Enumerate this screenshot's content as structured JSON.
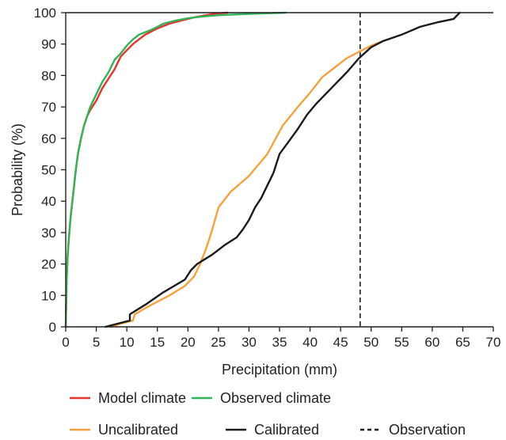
{
  "chart_data": {
    "type": "line",
    "title": "",
    "xlabel": "Precipitation (mm)",
    "ylabel": "Probability (%)",
    "xlim": [
      0,
      70
    ],
    "ylim": [
      0,
      100
    ],
    "xticks": [
      "0",
      "5",
      "10",
      "15",
      "20",
      "25",
      "30",
      "35",
      "40",
      "45",
      "50",
      "55",
      "60",
      "65",
      "70"
    ],
    "yticks": [
      "0",
      "10",
      "20",
      "30",
      "40",
      "50",
      "60",
      "70",
      "80",
      "90",
      "100"
    ],
    "grid": false,
    "legend_position": "bottom",
    "series": [
      {
        "name": "Model climate",
        "color": "#e8322e",
        "style": "solid",
        "x": [
          0,
          0.15,
          0.3,
          0.5,
          0.8,
          1.2,
          1.6,
          2.0,
          2.5,
          3.0,
          3.5,
          4.0,
          5.0,
          6.0,
          7.0,
          8.0,
          9.0,
          10.0,
          11.0,
          12.0,
          13.0,
          15.0,
          17.0,
          19.0,
          21.0,
          23.0,
          24.5,
          26.5
        ],
        "y": [
          0,
          15,
          22,
          28,
          35,
          42,
          49,
          55,
          60,
          64,
          67,
          69,
          72,
          76,
          79,
          82,
          86,
          88,
          90,
          91.5,
          93,
          95,
          96.5,
          97.5,
          98.5,
          99.2,
          99.7,
          100
        ]
      },
      {
        "name": "Observed climate",
        "color": "#2fb457",
        "style": "solid",
        "x": [
          0,
          0.15,
          0.3,
          0.5,
          0.8,
          1.2,
          1.6,
          2.0,
          2.5,
          3.0,
          3.5,
          4.0,
          5.0,
          6.0,
          7.0,
          8.0,
          9.0,
          10.0,
          11.0,
          12.0,
          14.0,
          16.0,
          18.0,
          20.0,
          22.0,
          25.0,
          30.0,
          36.0
        ],
        "y": [
          0,
          15,
          22,
          28,
          35,
          42,
          49,
          55,
          60,
          64,
          67,
          70,
          74,
          78,
          81,
          85,
          87,
          89.5,
          91.5,
          93,
          94.5,
          96.5,
          97.5,
          98.2,
          98.7,
          99.2,
          99.6,
          100
        ]
      },
      {
        "name": "Uncalibrated",
        "color": "#f5a23b",
        "style": "solid",
        "x": [
          7.5,
          9,
          11.0,
          11.3,
          14,
          17,
          19.5,
          21.0,
          22.0,
          23.0,
          24.0,
          25.0,
          27.0,
          30.0,
          33.0,
          35.5,
          38.0,
          40.0,
          42.0,
          44.0,
          46.0,
          48.0,
          50.0,
          52.0
        ],
        "y": [
          0,
          1,
          2,
          4,
          7,
          10,
          13,
          16,
          20,
          25,
          31,
          38,
          43,
          48,
          55,
          64,
          70,
          74.5,
          79.5,
          82.5,
          85.5,
          87.5,
          89.5,
          91
        ]
      },
      {
        "name": "Calibrated",
        "color": "#1b1a1a",
        "style": "solid",
        "x": [
          6.5,
          8.5,
          10.5,
          10.5,
          13.0,
          16.0,
          19.5,
          20.5,
          21.5,
          24.0,
          26.0,
          28.0,
          29.0,
          30.0,
          31.0,
          32.0,
          33.0,
          34.0,
          35.0,
          36.5,
          38.0,
          39.5,
          41.0,
          42.0,
          44.0,
          46.0,
          48.0,
          50.0,
          52.0,
          55.0,
          58.0,
          61.0,
          63.5,
          64.5
        ],
        "y": [
          0,
          1,
          2,
          4,
          7,
          11,
          15,
          18,
          20,
          23,
          26,
          28.5,
          31,
          34,
          38,
          41,
          45,
          49,
          55,
          59,
          63,
          67.5,
          71,
          73,
          77,
          81,
          85.5,
          89,
          91,
          93,
          95.5,
          97,
          98,
          100
        ]
      }
    ],
    "reference_lines": [
      {
        "name": "Observation",
        "orientation": "vertical",
        "x": 48.2,
        "color": "#1b1a1a",
        "style": "dashed"
      }
    ],
    "legend": [
      {
        "label": "Model climate",
        "color": "#e8322e",
        "style": "solid"
      },
      {
        "label": "Observed climate",
        "color": "#2fb457",
        "style": "solid"
      },
      {
        "label": "Uncalibrated",
        "color": "#f5a23b",
        "style": "solid"
      },
      {
        "label": "Calibrated",
        "color": "#1b1a1a",
        "style": "solid"
      },
      {
        "label": "Observation",
        "color": "#1b1a1a",
        "style": "dashed"
      }
    ]
  }
}
